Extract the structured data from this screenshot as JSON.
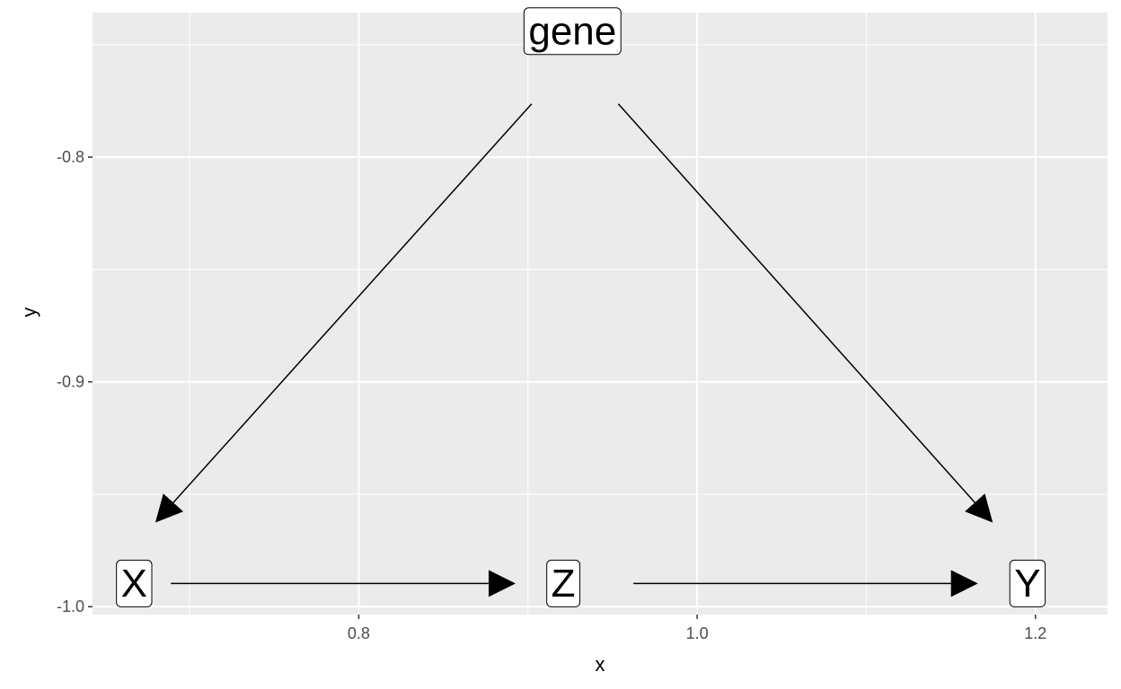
{
  "chart_data": {
    "type": "diagram",
    "title": "",
    "xlabel": "x",
    "ylabel": "y",
    "xlim": [
      0.6426,
      1.2426
    ],
    "ylim": [
      -1.0035,
      -0.7357
    ],
    "x_ticks": [
      {
        "value": 0.8,
        "label": "0.8"
      },
      {
        "value": 1.0,
        "label": "1.0"
      },
      {
        "value": 1.2,
        "label": "1.2"
      }
    ],
    "y_ticks": [
      {
        "value": -0.8,
        "label": "-0.8"
      },
      {
        "value": -0.9,
        "label": "-0.9"
      },
      {
        "value": -1.0,
        "label": "-1.0"
      }
    ],
    "x_minor": [
      0.7,
      0.9,
      1.1
    ],
    "y_minor": [
      -0.75,
      -0.85,
      -0.95
    ],
    "grid": true,
    "nodes": [
      {
        "id": "gene",
        "label": "gene",
        "x": 0.9263,
        "y": -0.744
      },
      {
        "id": "X",
        "label": "X",
        "x": 0.6672,
        "y": -0.9897
      },
      {
        "id": "Z",
        "label": "Z",
        "x": 0.9209,
        "y": -0.9897
      },
      {
        "id": "Y",
        "label": "Y",
        "x": 1.1953,
        "y": -0.9897
      }
    ],
    "edges": [
      {
        "from": "gene",
        "to": "X",
        "x1": 0.9022,
        "y1": -0.7763,
        "x2": 0.6808,
        "y2": -0.9617
      },
      {
        "from": "gene",
        "to": "Y",
        "x1": 0.9534,
        "y1": -0.7763,
        "x2": 1.1737,
        "y2": -0.9617
      },
      {
        "from": "X",
        "to": "Z",
        "x1": 0.6889,
        "y1": -0.9897,
        "x2": 0.8911,
        "y2": -0.9897
      },
      {
        "from": "Z",
        "to": "Y",
        "x1": 0.9623,
        "y1": -0.9897,
        "x2": 1.1644,
        "y2": -0.9897
      }
    ],
    "colors": {
      "panel_background": "#ebebeb",
      "grid": "#ffffff",
      "edge": "#000000",
      "label_fill": "#ffffff",
      "label_border": "#000000"
    }
  }
}
